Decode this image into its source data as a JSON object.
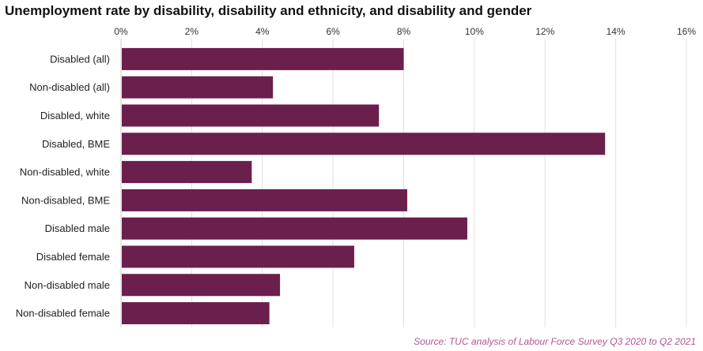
{
  "chart_data": {
    "type": "bar",
    "orientation": "horizontal",
    "title": "Unemployment rate by disability, disability and ethnicity, and disability and gender",
    "categories": [
      "Disabled (all)",
      "Non-disabled (all)",
      "Disabled, white",
      "Disabled, BME",
      "Non-disabled, white",
      "Non-disabled, BME",
      "Disabled male",
      "Disabled female",
      "Non-disabled male",
      "Non-disabled female"
    ],
    "values": [
      8.0,
      4.3,
      7.3,
      13.7,
      3.7,
      8.1,
      9.8,
      6.6,
      4.5,
      4.2
    ],
    "xlim": [
      0,
      16
    ],
    "xticks": [
      0,
      2,
      4,
      6,
      8,
      10,
      12,
      14,
      16
    ],
    "tick_format": "%",
    "axis_position": "top",
    "grid": true,
    "bar_color": "#6b1f4d",
    "grid_color": "#e6dde3",
    "source": "Source: TUC analysis of Labour Force Survey Q3 2020 to Q2 2021"
  }
}
